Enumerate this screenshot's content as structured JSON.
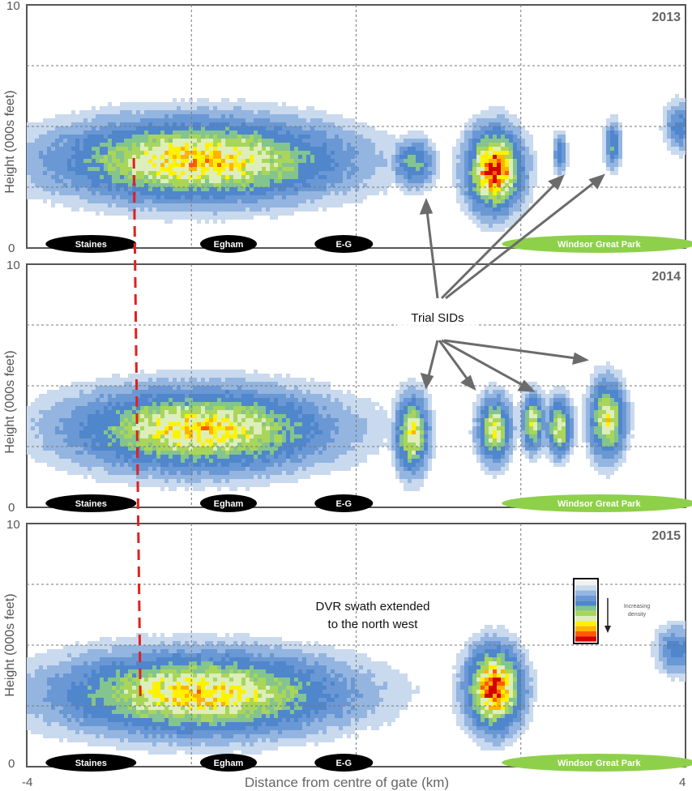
{
  "chart_data": {
    "type": "heatmap",
    "xlabel": "Distance from centre of gate (km)",
    "ylabel": "Height (000s feet)",
    "xlim": [
      -4,
      4
    ],
    "ylim": [
      0,
      10
    ],
    "x_tick_labels": [
      "-4",
      "4"
    ],
    "y_tick_labels": [
      "0",
      "10"
    ],
    "grid": true,
    "places": [
      {
        "label": "Staines",
        "x": -3.22,
        "color": "#000000"
      },
      {
        "label": "Egham",
        "x": -1.55,
        "color": "#000000"
      },
      {
        "label": "E-G",
        "x": -0.15,
        "color": "#000000"
      },
      {
        "label": "Windsor Great Park",
        "x": 2.95,
        "color": "#8ed04a"
      }
    ],
    "density_colors": [
      "#f2f2f2",
      "#c9d9ee",
      "#93b5e0",
      "#6a98d4",
      "#4f86cc",
      "#83c48f",
      "#a9d65a",
      "#ddeebb",
      "#fff200",
      "#ffb400",
      "#ff5a00",
      "#d40000"
    ],
    "panels": [
      {
        "year": "2013",
        "clusters": [
          {
            "x": -1.9,
            "y": 3.6,
            "sx": 1.05,
            "sy": 1.0,
            "peak": 0.78
          },
          {
            "x": -2.0,
            "y": 3.7,
            "sx": 0.45,
            "sy": 0.55,
            "peak": 0.55
          },
          {
            "x": 0.7,
            "y": 3.5,
            "sx": 0.15,
            "sy": 0.6,
            "peak": 0.4
          },
          {
            "x": 1.68,
            "y": 3.2,
            "sx": 0.2,
            "sy": 1.0,
            "peak": 1.0
          },
          {
            "x": 2.48,
            "y": 3.9,
            "sx": 0.05,
            "sy": 0.5,
            "peak": 0.3
          },
          {
            "x": 3.12,
            "y": 4.2,
            "sx": 0.06,
            "sy": 0.6,
            "peak": 0.35
          },
          {
            "x": 3.95,
            "y": 5.0,
            "sx": 0.12,
            "sy": 0.6,
            "peak": 0.3
          }
        ]
      },
      {
        "year": "2014",
        "clusters": [
          {
            "x": -1.9,
            "y": 3.2,
            "sx": 0.95,
            "sy": 1.0,
            "peak": 0.74
          },
          {
            "x": -2.05,
            "y": 3.3,
            "sx": 0.45,
            "sy": 0.55,
            "peak": 0.55
          },
          {
            "x": 0.68,
            "y": 3.0,
            "sx": 0.12,
            "sy": 0.95,
            "peak": 0.7
          },
          {
            "x": 1.68,
            "y": 3.2,
            "sx": 0.12,
            "sy": 0.8,
            "peak": 0.68
          },
          {
            "x": 2.15,
            "y": 3.5,
            "sx": 0.08,
            "sy": 0.7,
            "peak": 0.66
          },
          {
            "x": 2.47,
            "y": 3.3,
            "sx": 0.09,
            "sy": 0.7,
            "peak": 0.65
          },
          {
            "x": 3.05,
            "y": 3.6,
            "sx": 0.13,
            "sy": 0.95,
            "peak": 0.68
          }
        ]
      },
      {
        "year": "2015",
        "clusters": [
          {
            "x": -1.9,
            "y": 3.0,
            "sx": 1.05,
            "sy": 1.0,
            "peak": 0.76
          },
          {
            "x": -2.05,
            "y": 3.1,
            "sx": 0.45,
            "sy": 0.55,
            "peak": 0.55
          },
          {
            "x": 1.68,
            "y": 3.2,
            "sx": 0.2,
            "sy": 1.0,
            "peak": 1.0
          },
          {
            "x": 3.9,
            "y": 4.8,
            "sx": 0.15,
            "sy": 0.6,
            "peak": 0.3
          }
        ]
      }
    ],
    "dvr_line": {
      "x_top": -2.7,
      "y_top": 3.7,
      "x_bottom": -2.62,
      "y_bottom": 2.9,
      "color": "#e02020"
    }
  },
  "annotations": {
    "trial_sids": "Trial SIDs",
    "dvr_line1": "DVR swath extended",
    "dvr_line2": "to the north west",
    "legend_line1": "Increasing",
    "legend_line2": "density"
  }
}
